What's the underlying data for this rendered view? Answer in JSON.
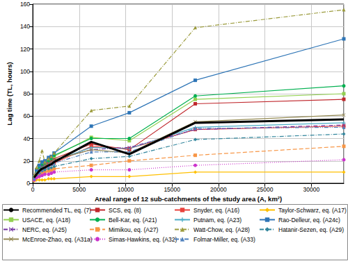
{
  "chart_data": {
    "type": "line",
    "x_label": "Areal range of 12 sub-catchments of the study area (A, km²)",
    "y_label": "Lag time (TL, hours)",
    "x": [
      150,
      400,
      700,
      1000,
      1300,
      1700,
      2000,
      2300,
      6300,
      10400,
      17500,
      33500
    ],
    "xlim": [
      0,
      33500
    ],
    "xticks": [
      0,
      5000,
      10000,
      15000,
      20000,
      25000,
      30000
    ],
    "ylim": [
      0,
      160
    ],
    "yticks": [
      0,
      20,
      40,
      60,
      80,
      100,
      120,
      140,
      160
    ],
    "grid": true,
    "legend": "bottom",
    "series": [
      {
        "name": "Recommended TL, eq. (7)",
        "color": "#000000",
        "marker": "none",
        "line_style": "solid",
        "values": [
          5,
          8,
          11,
          13,
          14,
          16,
          17,
          19,
          37,
          26,
          54,
          57
        ]
      },
      {
        "name": "SCS, eq. (8)",
        "color": "#c0282d",
        "marker": "rect",
        "line_style": "solid",
        "values": [
          4,
          8,
          11,
          14,
          16,
          18,
          20,
          22,
          35,
          30,
          71,
          75
        ]
      },
      {
        "name": "Snyder, eq. (A16)",
        "color": "#e8413c",
        "marker": "line",
        "line_style": "solid",
        "values": [
          5,
          9,
          11,
          13,
          14,
          16,
          17,
          18,
          33,
          31,
          48,
          51
        ]
      },
      {
        "name": "Taylor-Schwarz, eq. (A17)",
        "color": "#ffc000",
        "marker": "diamond",
        "line_style": "solid",
        "values": [
          2,
          3,
          3,
          3,
          3,
          4,
          4,
          4,
          6,
          6,
          10,
          10
        ]
      },
      {
        "name": "USACE, eq. (A18)",
        "color": "#92d050",
        "marker": "rect",
        "line_style": "solid",
        "values": [
          5,
          10,
          13,
          16,
          18,
          21,
          22,
          24,
          41,
          38,
          75,
          80
        ]
      },
      {
        "name": "Bell-Kar, eq. (A21)",
        "color": "#00b050",
        "marker": "circle",
        "line_style": "solid",
        "values": [
          5,
          10,
          13,
          16,
          18,
          20,
          22,
          25,
          40,
          40,
          78,
          87
        ]
      },
      {
        "name": "Putnam, eq. (A23)",
        "color": "#4bacc6",
        "marker": "plus",
        "line_style": "solid",
        "values": [
          5,
          9,
          12,
          14,
          15,
          17,
          18,
          20,
          32,
          31,
          50,
          54
        ]
      },
      {
        "name": "Rao-Delleur, eq. (A24c)",
        "color": "#2e75b6",
        "marker": "line",
        "line_style": "solid",
        "values": [
          6,
          12,
          16,
          19,
          20,
          23,
          24,
          27,
          51,
          63,
          92,
          129
        ]
      },
      {
        "name": "NERC, eq. (A25)",
        "color": "#7030a0",
        "marker": "x",
        "line_style": "dashdot",
        "values": [
          5,
          9,
          12,
          15,
          16,
          18,
          19,
          21,
          30,
          32,
          48,
          52
        ]
      },
      {
        "name": "Mimikou, eq. (A27)",
        "color": "#f79646",
        "marker": "rect",
        "line_style": "dashed",
        "values": [
          3,
          6,
          8,
          9,
          10,
          11,
          12,
          13,
          16,
          20,
          25,
          33
        ]
      },
      {
        "name": "Watt-Chow, eq. (A28)",
        "color": "#9b9b3c",
        "marker": "triangle",
        "line_style": "dashdot",
        "values": [
          7,
          14,
          20,
          29,
          19,
          22,
          24,
          27,
          65,
          69,
          139,
          155
        ]
      },
      {
        "name": "Hatanir-Sezen, eq. (A29)",
        "color": "#31859c",
        "marker": "diamond",
        "line_style": "dashdot",
        "values": [
          4,
          7,
          9,
          11,
          12,
          13,
          14,
          15,
          22,
          24,
          39,
          44
        ]
      },
      {
        "name": "McEnroe-Zhao, eq. (A31a)",
        "color": "#948a54",
        "marker": "x",
        "line_style": "solid",
        "values": [
          5,
          9,
          12,
          14,
          16,
          18,
          19,
          21,
          30,
          27,
          55,
          61
        ]
      },
      {
        "name": "Simas-Hawkins, eq. (A32)",
        "color": "#cc33cc",
        "marker": "circle",
        "line_style": "dotted",
        "values": [
          3,
          5,
          6,
          7,
          8,
          8,
          9,
          10,
          12,
          12,
          16,
          21
        ]
      },
      {
        "name": "Folmar-Miller, eq. (A33)",
        "color": "#4f81bd",
        "marker": "triangle",
        "line_style": "dashdotdot",
        "values": [
          4,
          8,
          10,
          12,
          14,
          15,
          17,
          18,
          28,
          28,
          49,
          50
        ]
      }
    ]
  }
}
